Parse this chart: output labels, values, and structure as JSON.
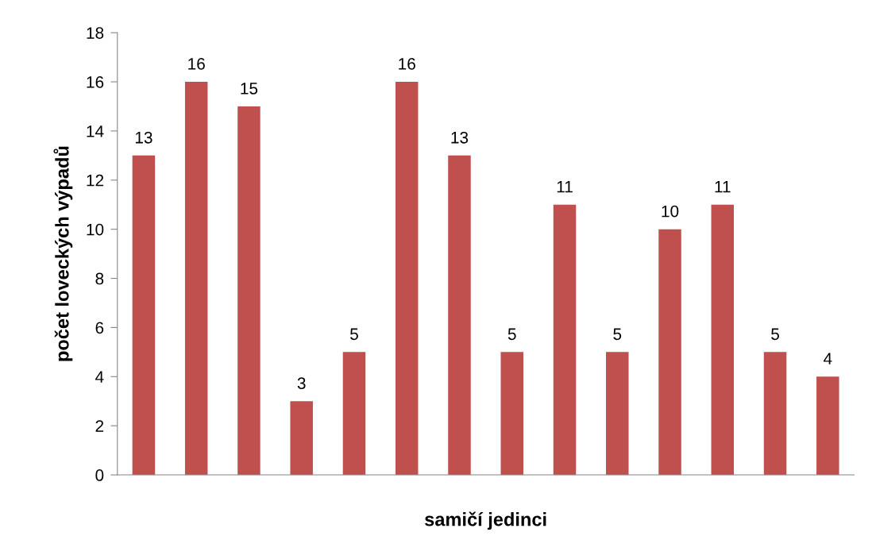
{
  "chart_data": {
    "type": "bar",
    "xlabel": "samičí jedinci",
    "ylabel": "počet loveckých výpadů",
    "categories": [
      null,
      null,
      null,
      null,
      null,
      null,
      null,
      null,
      null,
      null,
      null,
      null,
      null,
      null
    ],
    "values": [
      13,
      16,
      15,
      3,
      5,
      16,
      13,
      5,
      11,
      5,
      10,
      11,
      5,
      4
    ],
    "color": "#c0504d",
    "ylim": [
      0,
      18
    ],
    "yticks": [
      0,
      2,
      4,
      6,
      8,
      10,
      12,
      14,
      16,
      18
    ],
    "data_labels": true,
    "grid": false,
    "legend": false
  }
}
